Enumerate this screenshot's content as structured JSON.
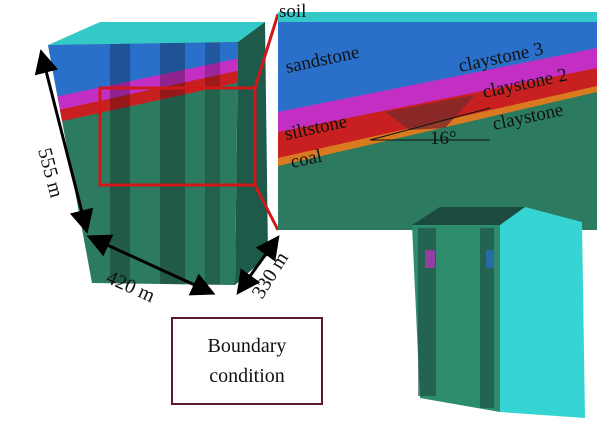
{
  "zoom_labels": {
    "soil": "soil",
    "sandstone": "sandstone",
    "claystone_3": "claystone 3",
    "claystone_2": "claystone 2",
    "siltstone": "siltstone",
    "angle": "16°",
    "claystone": "claystone",
    "coal": "coal"
  },
  "dimensions": {
    "height": "555 m",
    "width": "420 m",
    "depth": "330 m"
  },
  "boundary_box": {
    "line1": "Boundary",
    "line2": "condition"
  }
}
